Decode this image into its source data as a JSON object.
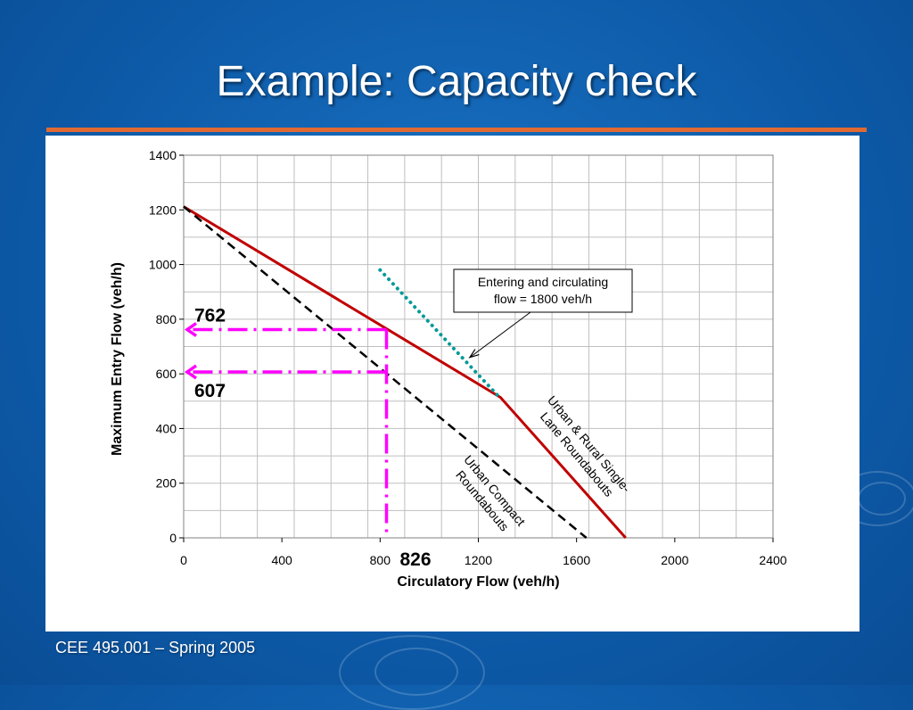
{
  "slide": {
    "title": "Example:  Capacity check",
    "footer": "CEE 495.001 – Spring 2005"
  },
  "colors": {
    "background": "#0d5aa8",
    "title_rule": "#e06a32",
    "single_lane": "#c00000",
    "compact": "#000000",
    "entering_line": "#009999",
    "guide": "#ff00ff"
  },
  "chart_data": {
    "type": "line",
    "xlabel": "Circulatory Flow (veh/h)",
    "ylabel": "Maximum Entry Flow (veh/h)",
    "xlim": [
      0,
      2400
    ],
    "ylim": [
      0,
      1400
    ],
    "x_ticks": [
      0,
      400,
      800,
      1200,
      1600,
      2000,
      2400
    ],
    "y_ticks": [
      0,
      200,
      400,
      600,
      800,
      1000,
      1200,
      1400
    ],
    "grid": true,
    "series": [
      {
        "name": "Urban & Rural Single-Lane Roundabouts",
        "style": "solid",
        "points": [
          [
            0,
            1212
          ],
          [
            1290,
            514
          ],
          [
            1800,
            0
          ]
        ]
      },
      {
        "name": "Urban Compact Roundabouts",
        "style": "dashed",
        "points": [
          [
            0,
            1212
          ],
          [
            1640,
            0
          ]
        ]
      },
      {
        "name": "Entering and circulating flow = 1800 veh/h",
        "style": "dotted",
        "points": [
          [
            800,
            980
          ],
          [
            1280,
            520
          ]
        ]
      }
    ],
    "callout": {
      "lines": [
        "Entering and circulating",
        "flow = 1800 veh/h"
      ],
      "points_to": [
        1165,
        660
      ]
    },
    "series_labels": {
      "single_lane": [
        "Urban & Rural Single-",
        "Lane Roundabouts"
      ],
      "compact": [
        "Urban Compact",
        "Roundabouts"
      ]
    },
    "annotations": [
      {
        "label": "762",
        "value": 762
      },
      {
        "label": "607",
        "value": 607
      },
      {
        "label": "826",
        "value": 826
      }
    ]
  }
}
